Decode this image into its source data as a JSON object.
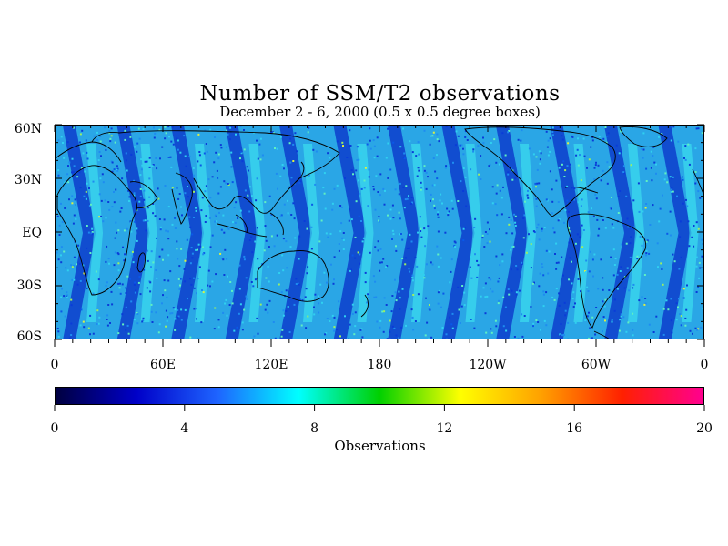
{
  "title": "Number of SSM/T2 observations",
  "subtitle": "December 2 - 6, 2000 (0.5 x 0.5 degree boxes)",
  "map": {
    "lat_labels": [
      "60N",
      "30N",
      "EQ",
      "30S",
      "60S"
    ],
    "lat_values": [
      60,
      30,
      0,
      -30,
      -60
    ],
    "lat_range": [
      -60,
      60
    ],
    "lon_labels": [
      "0",
      "60E",
      "120E",
      "180",
      "120W",
      "60W",
      "0"
    ],
    "lon_values": [
      0,
      60,
      120,
      180,
      240,
      300,
      360
    ],
    "lon_range": [
      0,
      360
    ],
    "projection": "equirectangular"
  },
  "colorbar": {
    "title": "Observations",
    "tick_labels": [
      "0",
      "4",
      "8",
      "12",
      "16",
      "20"
    ],
    "tick_values": [
      0,
      4,
      8,
      12,
      16,
      20
    ],
    "range": [
      0,
      20
    ],
    "colors": [
      "#000040",
      "#0000c8",
      "#1e64ff",
      "#00ffff",
      "#00d000",
      "#ffff00",
      "#ffa000",
      "#ff2000",
      "#ff0090"
    ]
  }
}
